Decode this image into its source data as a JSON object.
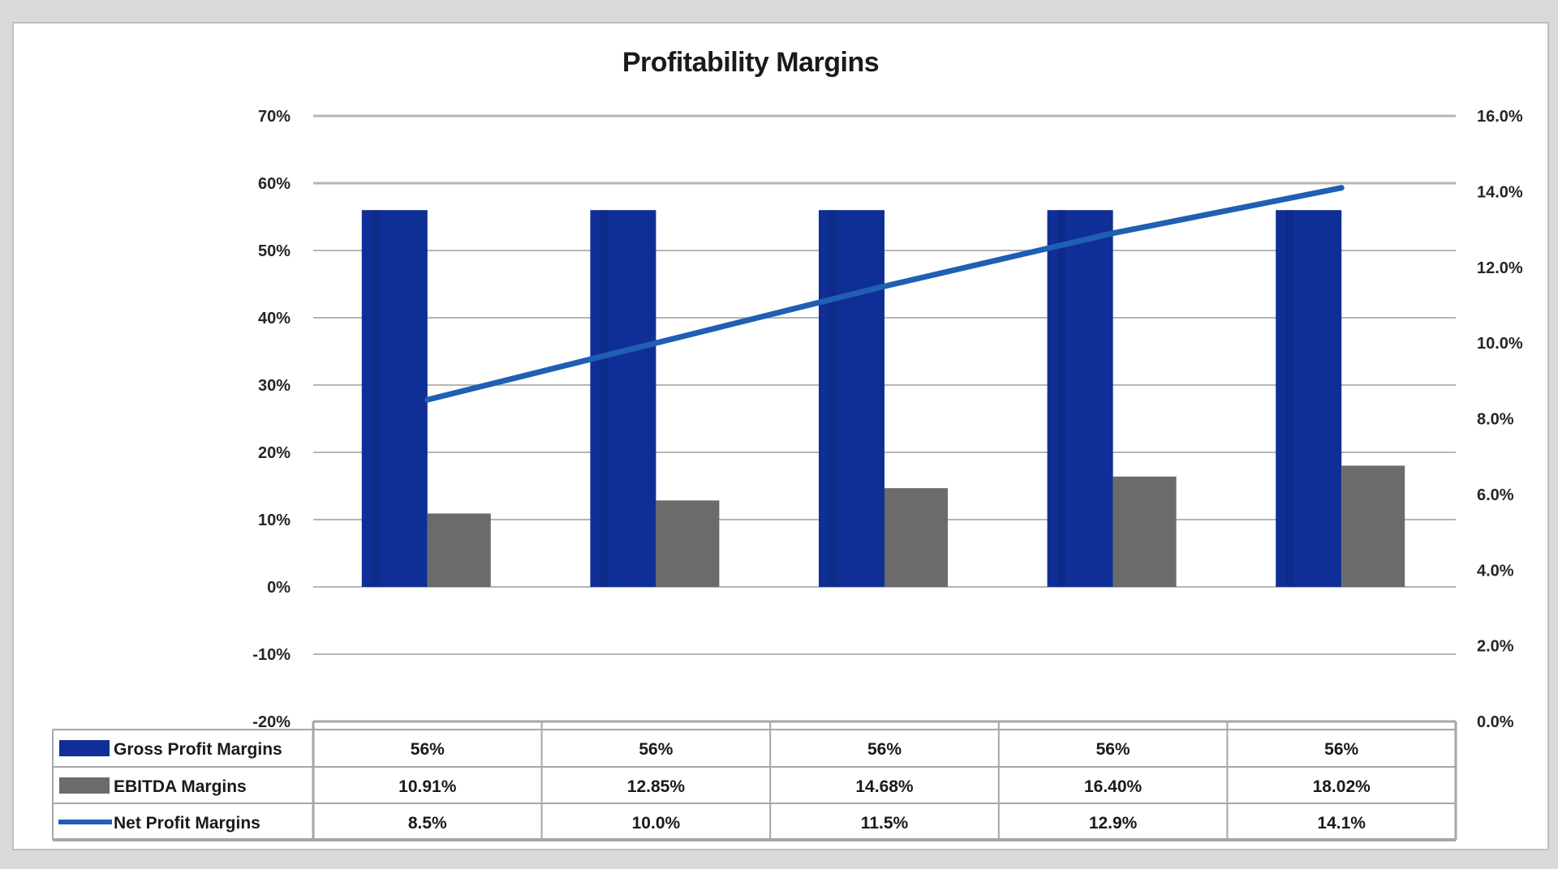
{
  "chart_data": {
    "type": "bar",
    "title": "Profitability Margins",
    "categories": [
      "",
      "",
      "",
      "",
      ""
    ],
    "series": [
      {
        "name": "Gross Profit Margins",
        "type": "bar",
        "axis": "left",
        "color": "#0f2f96",
        "values": [
          56,
          56,
          56,
          56,
          56
        ],
        "labels": [
          "56%",
          "56%",
          "56%",
          "56%",
          "56%"
        ]
      },
      {
        "name": "EBITDA Margins",
        "type": "bar",
        "axis": "left",
        "color": "#6b6b6b",
        "values": [
          10.91,
          12.85,
          14.68,
          16.4,
          18.02
        ],
        "labels": [
          "10.91%",
          "12.85%",
          "14.68%",
          "16.40%",
          "18.02%"
        ]
      },
      {
        "name": "Net Profit Margins",
        "type": "line",
        "axis": "right",
        "color": "#1f5fb4",
        "values": [
          8.5,
          10.0,
          11.5,
          12.9,
          14.1
        ],
        "labels": [
          "8.5%",
          "10.0%",
          "11.5%",
          "12.9%",
          "14.1%"
        ]
      }
    ],
    "y_left": {
      "ticks": [
        "70%",
        "60%",
        "50%",
        "40%",
        "30%",
        "20%",
        "10%",
        "0%",
        "-10%",
        "-20%"
      ],
      "ylim": [
        -20,
        70
      ]
    },
    "y_right": {
      "ticks": [
        "16.0%",
        "14.0%",
        "12.0%",
        "10.0%",
        "8.0%",
        "6.0%",
        "4.0%",
        "2.0%",
        "0.0%"
      ],
      "ylim": [
        0,
        16
      ]
    },
    "xlabel": "",
    "ylabel": "",
    "grid": true,
    "legend_position": "data-table"
  }
}
